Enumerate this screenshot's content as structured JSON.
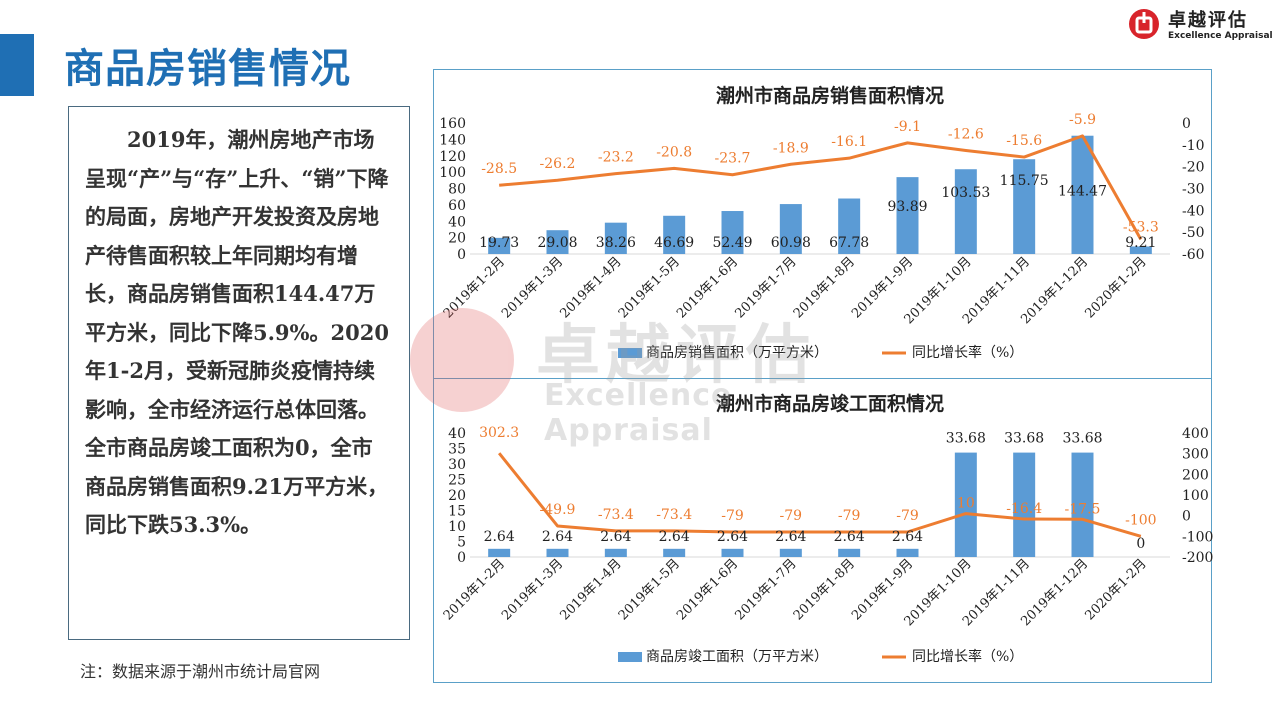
{
  "page": {
    "title": "商品房销售情况",
    "brand_cn": "卓越评估",
    "brand_en": "Excellence Appraisal",
    "body_text": "2019年，潮州房地产市场呈现“产”与“存”上升、“销”下降的局面，房地产开发投资及房地产待售面积较上年同期均有增长，商品房销售面积144.47万平方米，同比下降5.9%。2020年1-2月，受新冠肺炎疫情持续影响，全市经济运行总体回落。全市商品房竣工面积为0，全市商品房销售面积9.21万平方米，同比下跌53.3%。",
    "footnote": "注：数据来源于潮州市统计局官网",
    "watermark_cn": "卓越评估",
    "watermark_en": "Excellence Appraisal"
  },
  "colors": {
    "accent": "#1f6fb4",
    "bar": "#5b9bd5",
    "line": "#ed7d31",
    "brand_red": "#d8242b"
  },
  "chart_data": [
    {
      "type": "bar",
      "title": "潮州市商品房销售面积情况",
      "categories": [
        "2019年1-2月",
        "2019年1-3月",
        "2019年1-4月",
        "2019年1-5月",
        "2019年1-6月",
        "2019年1-7月",
        "2019年1-8月",
        "2019年1-9月",
        "2019年1-10月",
        "2019年1-11月",
        "2019年1-12月",
        "2020年1-2月"
      ],
      "series": [
        {
          "name": "商品房销售面积（万平方米）",
          "type": "bar",
          "axis": "left",
          "values": [
            19.73,
            29.08,
            38.26,
            46.69,
            52.49,
            60.98,
            67.78,
            93.89,
            103.53,
            115.75,
            144.47,
            9.21
          ]
        },
        {
          "name": "同比增长率（%）",
          "type": "line",
          "axis": "right",
          "values": [
            -28.5,
            -26.2,
            -23.2,
            -20.8,
            -23.7,
            -18.9,
            -16.1,
            -9.1,
            -12.6,
            -15.6,
            -5.9,
            -53.3
          ]
        }
      ],
      "ylim_left": [
        0,
        160
      ],
      "yticks_left": [
        0,
        20,
        40,
        60,
        80,
        100,
        120,
        140,
        160
      ],
      "ylim_right": [
        -60,
        0
      ],
      "yticks_right": [
        0,
        -10,
        -20,
        -30,
        -40,
        -50,
        -60
      ],
      "legend": "bottom"
    },
    {
      "type": "bar",
      "title": "潮州市商品房竣工面积情况",
      "categories": [
        "2019年1-2月",
        "2019年1-3月",
        "2019年1-4月",
        "2019年1-5月",
        "2019年1-6月",
        "2019年1-7月",
        "2019年1-8月",
        "2019年1-9月",
        "2019年1-10月",
        "2019年1-11月",
        "2019年1-12月",
        "2020年1-2月"
      ],
      "series": [
        {
          "name": "商品房竣工面积（万平方米）",
          "type": "bar",
          "axis": "left",
          "values": [
            2.64,
            2.64,
            2.64,
            2.64,
            2.64,
            2.64,
            2.64,
            2.64,
            33.68,
            33.68,
            33.68,
            0
          ]
        },
        {
          "name": "同比增长率（%）",
          "type": "line",
          "axis": "right",
          "values": [
            302.3,
            -49.9,
            -73.4,
            -73.4,
            -79,
            -79,
            -79,
            -79,
            10,
            -16.4,
            -17.5,
            -100
          ]
        }
      ],
      "ylim_left": [
        0,
        40
      ],
      "yticks_left": [
        0,
        5,
        10,
        15,
        20,
        25,
        30,
        35,
        40
      ],
      "ylim_right": [
        -200,
        400
      ],
      "yticks_right": [
        400,
        300,
        200,
        100,
        0,
        -100,
        -200
      ],
      "legend": "bottom"
    }
  ]
}
